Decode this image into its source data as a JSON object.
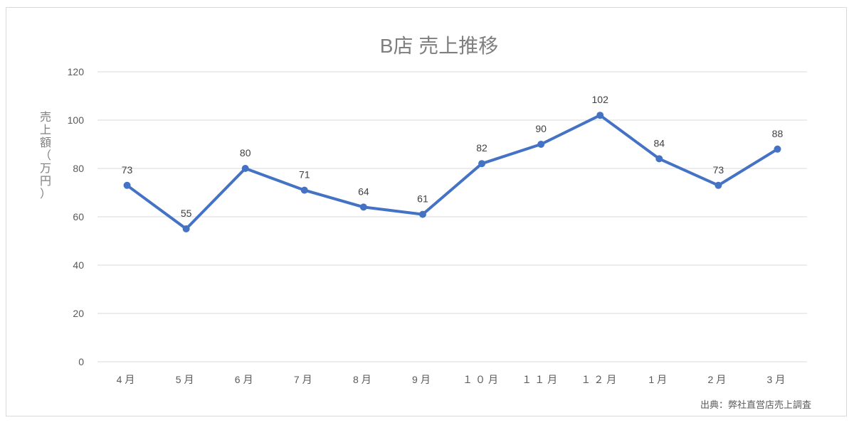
{
  "chart_data": {
    "type": "line",
    "title": "B店 売上推移",
    "xlabel": "",
    "ylabel": "売上額（万円）",
    "categories": [
      "4月",
      "5月",
      "6月",
      "7月",
      "8月",
      "9月",
      "１０月",
      "１１月",
      "１２月",
      "1月",
      "2月",
      "3月"
    ],
    "series": [
      {
        "values": [
          73,
          55,
          80,
          71,
          64,
          61,
          82,
          90,
          102,
          84,
          73,
          88
        ],
        "color": "#4472c4"
      }
    ],
    "ylim": [
      0,
      120
    ],
    "yticks": [
      0,
      20,
      40,
      60,
      80,
      100,
      120
    ],
    "grid": true,
    "legend": "none",
    "data_labels": true,
    "source": "出典：弊社直営店売上調査"
  }
}
